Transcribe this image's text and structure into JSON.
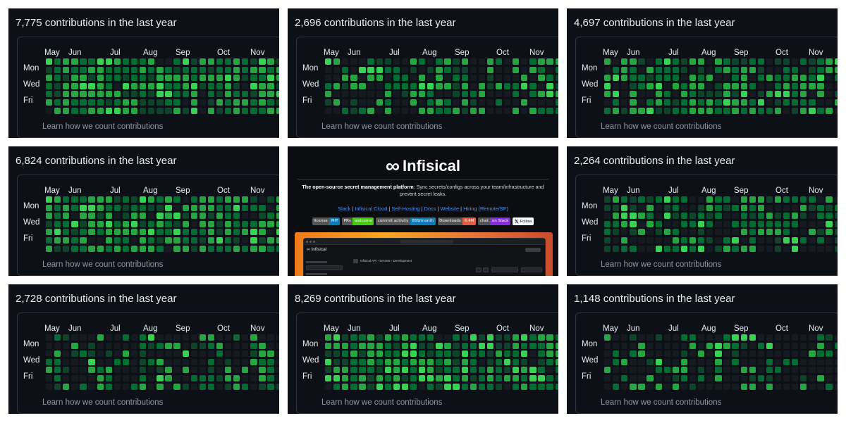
{
  "learn_label": "Learn how we count contributions",
  "day_labels": [
    "Mon",
    "Wed",
    "Fri"
  ],
  "colors": {
    "panel_bg": "#0d1117",
    "level0": "#161b22",
    "level1": "#0e4429",
    "level2": "#006d32",
    "level3": "#26a641",
    "level4": "#39d353",
    "link": "#4493f8"
  },
  "panels": [
    {
      "title": "7,775 contributions in the last year",
      "months": [
        "May",
        "Jun",
        "Jul",
        "Aug",
        "Sep",
        "Oct",
        "Nov"
      ]
    },
    {
      "title": "2,696 contributions in the last year",
      "months": [
        "May",
        "Jun",
        "Jul",
        "Aug",
        "Sep",
        "Oct",
        "Nov"
      ]
    },
    {
      "title": "4,697 contributions in the last year",
      "months": [
        "May",
        "Jun",
        "Jul",
        "Aug",
        "Sep",
        "Oct",
        "Nov"
      ]
    },
    {
      "title": "6,824 contributions in the last year",
      "months": [
        "May",
        "Jun",
        "Jul",
        "Aug",
        "Sep",
        "Oct",
        "Nov"
      ]
    },
    {
      "title": "2,264 contributions in the last year",
      "months": [
        "May",
        "Jun",
        "Jul",
        "Aug",
        "Sep",
        "Oct",
        "Nov"
      ]
    },
    {
      "title": "2,728 contributions in the last year",
      "months": [
        "May",
        "Jun",
        "Jul",
        "Aug",
        "Sep",
        "Oct",
        "Nov"
      ]
    },
    {
      "title": "8,269 contributions in the last year",
      "months": [
        "May",
        "Jun",
        "Jul",
        "Aug",
        "Sep",
        "Oct",
        "Nov"
      ]
    },
    {
      "title": "1,148 contributions in the last year",
      "months": [
        "May",
        "Jun",
        "Jul",
        "Aug",
        "Sep",
        "Oct",
        "Nov"
      ]
    }
  ],
  "infisical": {
    "logo_mark": "∞",
    "name": "Infisical",
    "tagline_bold": "The open-source secret management platform",
    "tagline_rest": ": Sync secrets/configs across your team/infrastructure and prevent secret leaks.",
    "links": [
      "Slack",
      "Infisical Cloud",
      "Self-Hosting",
      "Docs",
      "Website",
      "Hiring (Remote/SF)"
    ],
    "link_separator": " | ",
    "badges": [
      {
        "key": "license",
        "value": "MIT",
        "color": "#0a7bbb"
      },
      {
        "key": "PRs",
        "value": "welcome",
        "color": "#4c1"
      },
      {
        "key": "commit activity",
        "value": "659/month",
        "color": "#0a7bbb"
      },
      {
        "key": "Downloads",
        "value": "6.4M",
        "color": "#e05d44"
      },
      {
        "key": "chat",
        "value": "on Slack",
        "color": "#8a2be2"
      }
    ],
    "follow_label": "Follow",
    "app": {
      "brand": "Infisical",
      "breadcrumb": "Infisical API  ›  Secrets  ›  Development"
    }
  }
}
